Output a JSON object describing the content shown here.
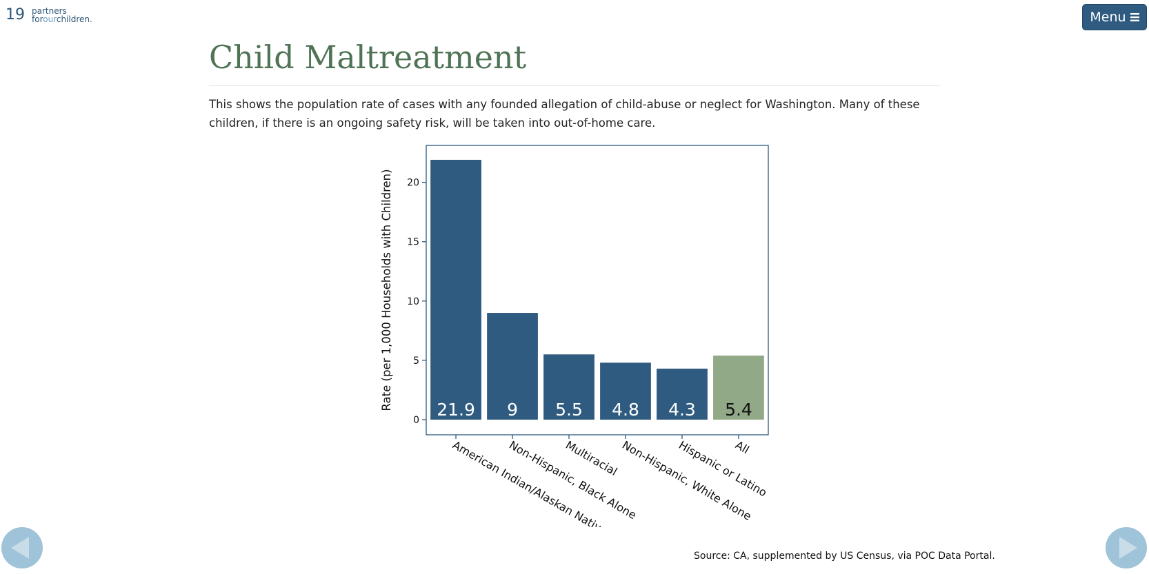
{
  "header": {
    "slide_number": "19",
    "logo_line1": "partners",
    "logo_for": "for",
    "logo_our": "our",
    "logo_children": "children.",
    "menu_label": "Menu",
    "menu_icon": "hamburger-icon"
  },
  "page": {
    "title": "Child Maltreatment",
    "description": "This shows the population rate of cases with any founded allegation of child-abuse or neglect for Washington. Many of these children, if there is an ongoing safety risk, will be taken into out-of-home care.",
    "source": "Source: CA, supplemented by US Census, via POC Data Portal."
  },
  "navigation": {
    "prev_icon": "triangle-left-icon",
    "next_icon": "triangle-right-icon"
  },
  "colors": {
    "bar": "#2f5b80",
    "bar_highlight": "#92a987",
    "title": "#4e7355",
    "menu": "#2f5b80",
    "nav": "#9fc3d8"
  },
  "chart_data": {
    "type": "bar",
    "categories": [
      "American Indian/Alaskan Native",
      "Non-Hispanic, Black Alone",
      "Multiracial",
      "Non-Hispanic, White Alone",
      "Hispanic or Latino",
      "All"
    ],
    "values": [
      21.9,
      9,
      5.5,
      4.8,
      4.3,
      5.4
    ],
    "data_labels": [
      "21.9",
      "9",
      "5.5",
      "4.8",
      "4.3",
      "5.4"
    ],
    "highlight_index": 5,
    "ylabel": "Rate (per 1,000 Households with Children)",
    "xlabel": "",
    "title": "",
    "ylim": [
      0,
      23
    ],
    "yticks": [
      0,
      5,
      10,
      15,
      20
    ],
    "grid": false,
    "legend": "none"
  }
}
